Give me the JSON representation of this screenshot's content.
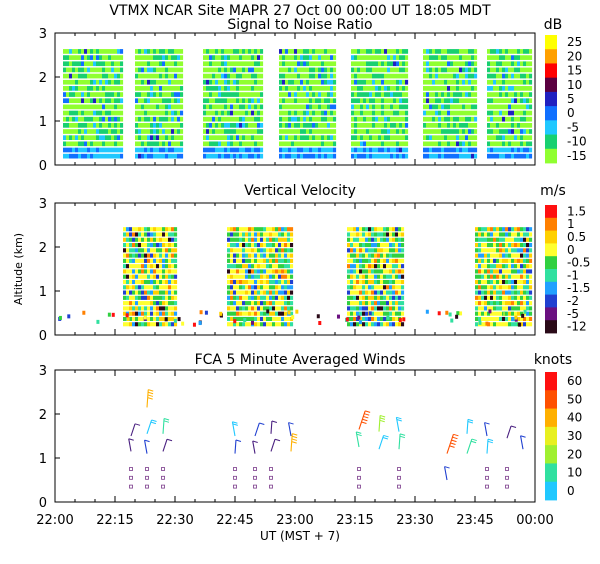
{
  "header": "VTMX   NCAR Site   MAPR 27 Oct 00   00:00 UT   18:05   MDT",
  "y_axis_label": "Altitude (km)",
  "x_axis_label": "UT   (MST + 7)",
  "x_ticks": [
    "22:00",
    "22:15",
    "22:30",
    "22:45",
    "23:00",
    "23:15",
    "23:30",
    "23:45",
    "00:00"
  ],
  "chart_data": [
    {
      "type": "heatmap",
      "title": "Signal to Noise Ratio",
      "units": "dB",
      "ylim": [
        0,
        3
      ],
      "yticks": [
        "0",
        "1",
        "2",
        "3"
      ],
      "legend_labels": [
        "25",
        "20",
        "15",
        "10",
        "5",
        "0",
        "-5",
        "-10",
        "-15"
      ],
      "colors": [
        "#ffff00",
        "#ffa000",
        "#ff0000",
        "#5a0040",
        "#2020c0",
        "#1070ff",
        "#20c8ff",
        "#18d070",
        "#90ff30"
      ],
      "active_windows_ut": [
        [
          "22:02",
          "22:17"
        ],
        [
          "22:20",
          "22:32"
        ],
        [
          "22:37",
          "22:52"
        ],
        [
          "22:56",
          "23:10"
        ],
        [
          "23:14",
          "23:28"
        ],
        [
          "23:32",
          "23:45"
        ],
        [
          "23:48",
          "23:59"
        ]
      ]
    },
    {
      "type": "heatmap",
      "title": "Vertical Velocity",
      "units": "m/s",
      "ylim": [
        0,
        3
      ],
      "yticks": [
        "0",
        "1",
        "2",
        "3"
      ],
      "legend_labels": [
        "1.5",
        "1",
        "0.5",
        "0",
        "-0.5",
        "-1",
        "-1.5",
        "-2",
        "-5",
        "-12"
      ],
      "colors": [
        "#ff1010",
        "#ff8000",
        "#ffd000",
        "#ffff30",
        "#30d040",
        "#30e0a0",
        "#20a0ff",
        "#2040d0",
        "#6a1080",
        "#2a0a18"
      ]
    },
    {
      "type": "scatter",
      "title": "FCA 5 Minute Averaged Winds",
      "units": "knots",
      "ylim": [
        0,
        3
      ],
      "yticks": [
        "0",
        "1",
        "2",
        "3"
      ],
      "legend_labels": [
        "60",
        "50",
        "40",
        "30",
        "20",
        "10",
        "0"
      ],
      "colors": [
        "#ff1010",
        "#ff5000",
        "#ffb000",
        "#e8f020",
        "#a0f030",
        "#30e0a0",
        "#20c8ff",
        "#2040d0",
        "#4a2080"
      ],
      "barbs": [
        {
          "time": "22:19",
          "alt": 1.5,
          "speed": 5
        },
        {
          "time": "22:19",
          "alt": 1.15,
          "speed": 5
        },
        {
          "time": "22:23",
          "alt": 2.15,
          "speed": 35
        },
        {
          "time": "22:23",
          "alt": 1.55,
          "speed": 15
        },
        {
          "time": "22:23",
          "alt": 1.1,
          "speed": 10
        },
        {
          "time": "22:27",
          "alt": 1.55,
          "speed": 20
        },
        {
          "time": "22:27",
          "alt": 1.15,
          "speed": 5
        },
        {
          "time": "22:45",
          "alt": 1.5,
          "speed": 15
        },
        {
          "time": "22:45",
          "alt": 1.1,
          "speed": 10
        },
        {
          "time": "22:50",
          "alt": 1.5,
          "speed": 10
        },
        {
          "time": "22:50",
          "alt": 1.1,
          "speed": 5
        },
        {
          "time": "22:54",
          "alt": 1.55,
          "speed": 5
        },
        {
          "time": "22:54",
          "alt": 1.15,
          "speed": 5
        },
        {
          "time": "22:59",
          "alt": 1.5,
          "speed": 10
        },
        {
          "time": "22:59",
          "alt": 1.15,
          "speed": 35
        },
        {
          "time": "23:16",
          "alt": 1.65,
          "speed": 45
        },
        {
          "time": "23:16",
          "alt": 1.25,
          "speed": 20
        },
        {
          "time": "23:21",
          "alt": 1.6,
          "speed": 25
        },
        {
          "time": "23:21",
          "alt": 1.2,
          "speed": 15
        },
        {
          "time": "23:26",
          "alt": 1.6,
          "speed": 15
        },
        {
          "time": "23:26",
          "alt": 1.2,
          "speed": 20
        },
        {
          "time": "23:38",
          "alt": 1.1,
          "speed": 50
        },
        {
          "time": "23:38",
          "alt": 0.5,
          "speed": 10
        },
        {
          "time": "23:43",
          "alt": 1.55,
          "speed": 15
        },
        {
          "time": "23:43",
          "alt": 1.1,
          "speed": 20
        },
        {
          "time": "23:48",
          "alt": 1.5,
          "speed": 10
        },
        {
          "time": "23:48",
          "alt": 1.1,
          "speed": 15
        },
        {
          "time": "23:53",
          "alt": 1.45,
          "speed": 5
        },
        {
          "time": "23:57",
          "alt": 1.2,
          "speed": 10
        }
      ]
    }
  ]
}
